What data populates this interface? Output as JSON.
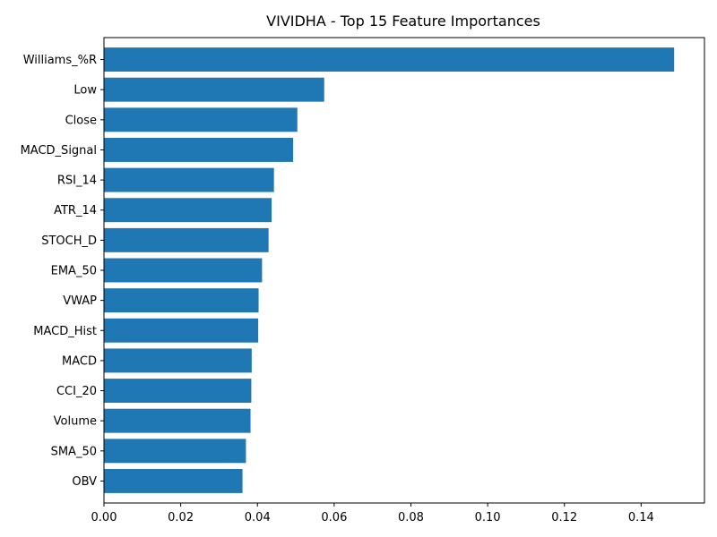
{
  "chart_data": {
    "type": "bar",
    "orientation": "horizontal",
    "title": "VIVIDHA - Top 15 Feature Importances",
    "xlabel": "",
    "ylabel": "",
    "categories": [
      "Williams_%R",
      "Low",
      "Close",
      "MACD_Signal",
      "RSI_14",
      "ATR_14",
      "STOCH_D",
      "EMA_50",
      "VWAP",
      "MACD_Hist",
      "MACD",
      "CCI_20",
      "Volume",
      "SMA_50",
      "OBV"
    ],
    "values": [
      0.1486,
      0.0574,
      0.0504,
      0.0493,
      0.0443,
      0.0437,
      0.0429,
      0.0412,
      0.0403,
      0.0402,
      0.0385,
      0.0384,
      0.0382,
      0.037,
      0.0361
    ],
    "xlim": [
      0,
      0.1565
    ],
    "xticks": [
      0.0,
      0.02,
      0.04,
      0.06,
      0.08,
      0.1,
      0.12,
      0.14
    ],
    "xtick_labels": [
      "0.00",
      "0.02",
      "0.04",
      "0.06",
      "0.08",
      "0.10",
      "0.12",
      "0.14"
    ],
    "grid": false,
    "legend": "none",
    "bar_color": "#1f77b4"
  }
}
